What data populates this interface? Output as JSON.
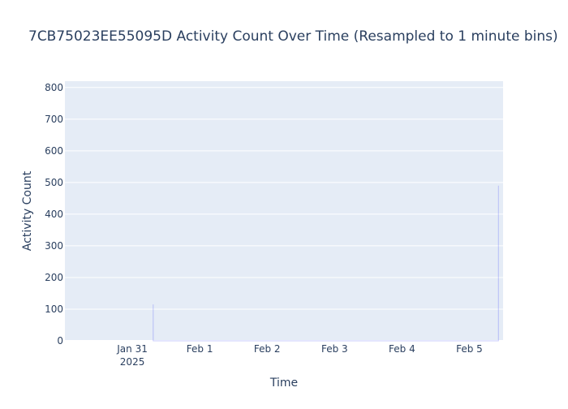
{
  "chart_data": {
    "type": "line",
    "title": "7CB75023EE55095D Activity Count Over Time (Resampled to 1 minute bins)",
    "xlabel": "Time",
    "ylabel": "Activity Count",
    "x_axis_type": "date",
    "xlim": [
      "2025-01-30T00:00",
      "2025-02-05T12:00"
    ],
    "ylim": [
      0,
      820
    ],
    "y_ticks": [
      0,
      100,
      200,
      300,
      400,
      500,
      600,
      700,
      800
    ],
    "x_ticks": [
      {
        "value": "2025-01-31T00:00",
        "label": "Jan 31",
        "sublabel": "2025"
      },
      {
        "value": "2025-02-01T00:00",
        "label": "Feb 1",
        "sublabel": ""
      },
      {
        "value": "2025-02-02T00:00",
        "label": "Feb 2",
        "sublabel": ""
      },
      {
        "value": "2025-02-03T00:00",
        "label": "Feb 3",
        "sublabel": ""
      },
      {
        "value": "2025-02-04T00:00",
        "label": "Feb 4",
        "sublabel": ""
      },
      {
        "value": "2025-02-05T00:00",
        "label": "Feb 5",
        "sublabel": ""
      }
    ],
    "grid": true,
    "legend": "none",
    "series": [
      {
        "color": "#636efa",
        "points": [
          {
            "x": "2025-01-31T07:25",
            "y": 0
          },
          {
            "x": "2025-01-31T07:26",
            "y": 115
          },
          {
            "x": "2025-01-31T07:27",
            "y": 0
          },
          {
            "x": "2025-02-05T10:20",
            "y": 0
          },
          {
            "x": "2025-02-05T10:21",
            "y": 490
          },
          {
            "x": "2025-02-05T10:22",
            "y": 0
          }
        ]
      }
    ]
  },
  "colors": {
    "plot_background": "#e5ecf6",
    "grid": "#ffffff",
    "text": "#2a3f5f",
    "line": "#636efa"
  }
}
